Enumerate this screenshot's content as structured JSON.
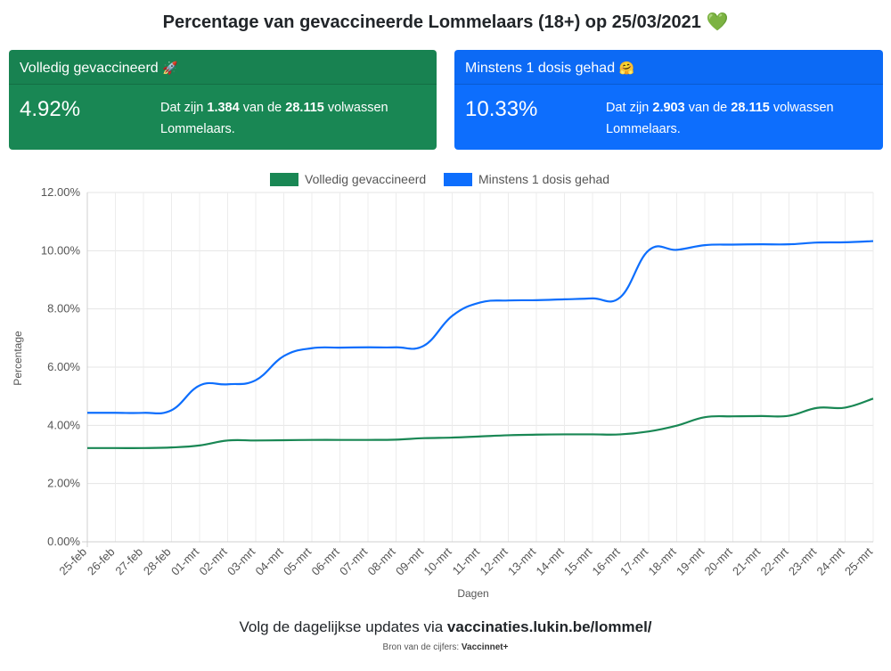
{
  "header": {
    "title": "Percentage van gevaccineerde Lommelaars (18+) op 25/03/2021",
    "emoji": "💚"
  },
  "cards": {
    "full": {
      "title": "Volledig gevaccineerd",
      "emoji": "🚀",
      "pct": "4.92%",
      "text_pre": "Dat zijn ",
      "count": "1.384",
      "text_mid": " van de ",
      "total": "28.115",
      "text_post": " volwassen Lommelaars.",
      "color": "#198754"
    },
    "partial": {
      "title": "Minstens 1 dosis gehad",
      "emoji": "🤗",
      "pct": "10.33%",
      "text_pre": "Dat zijn ",
      "count": "2.903",
      "text_mid": " van de ",
      "total": "28.115",
      "text_post": " volwassen Lommelaars.",
      "color": "#0d6efd"
    }
  },
  "chart_data": {
    "type": "line",
    "xlabel": "Dagen",
    "ylabel": "Percentage",
    "ylim": [
      0,
      12
    ],
    "yticks": [
      0,
      2,
      4,
      6,
      8,
      10,
      12
    ],
    "ytick_suffix": "%",
    "grid": true,
    "legend": "top",
    "x": [
      "25-feb",
      "26-feb",
      "27-feb",
      "28-feb",
      "01-mrt",
      "02-mrt",
      "03-mrt",
      "04-mrt",
      "05-mrt",
      "06-mrt",
      "07-mrt",
      "08-mrt",
      "09-mrt",
      "10-mrt",
      "11-mrt",
      "12-mrt",
      "13-mrt",
      "14-mrt",
      "15-mrt",
      "16-mrt",
      "17-mrt",
      "18-mrt",
      "19-mrt",
      "20-mrt",
      "21-mrt",
      "22-mrt",
      "23-mrt",
      "24-mrt",
      "25-mrt"
    ],
    "series": [
      {
        "name": "Volledig gevaccineerd",
        "color": "#198754",
        "values": [
          3.22,
          3.22,
          3.22,
          3.24,
          3.31,
          3.48,
          3.48,
          3.49,
          3.5,
          3.5,
          3.5,
          3.51,
          3.56,
          3.58,
          3.62,
          3.66,
          3.68,
          3.69,
          3.69,
          3.69,
          3.79,
          3.99,
          4.28,
          4.31,
          4.32,
          4.33,
          4.6,
          4.61,
          4.92
        ]
      },
      {
        "name": "Minstens 1 dosis gehad",
        "color": "#0d6efd",
        "values": [
          4.43,
          4.43,
          4.43,
          4.52,
          5.37,
          5.41,
          5.55,
          6.38,
          6.65,
          6.67,
          6.68,
          6.68,
          6.74,
          7.76,
          8.22,
          8.29,
          8.3,
          8.33,
          8.36,
          8.41,
          10.01,
          10.03,
          10.19,
          10.21,
          10.22,
          10.22,
          10.28,
          10.29,
          10.33
        ]
      }
    ]
  },
  "footer": {
    "text": "Volg de dagelijkse updates via ",
    "link": "vaccinaties.lukin.be/lommel/",
    "source_label": "Bron van de cijfers: ",
    "source": "Vaccinnet+"
  }
}
